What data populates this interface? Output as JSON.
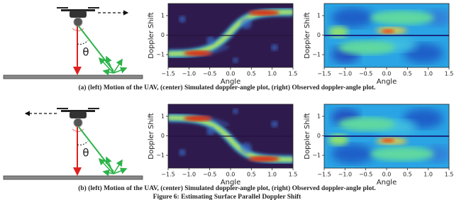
{
  "figure": {
    "rows": [
      {
        "theta": "θ",
        "plots": [
          {
            "ylabel": "Doppler Shift",
            "xlabel": "Angle",
            "xticks": [
              "−1.5",
              "−1.0",
              "−0.5",
              "0.0",
              "0.5",
              "1.0",
              "1.5"
            ],
            "yticks": [
              "1",
              "0",
              "−1"
            ]
          },
          {
            "ylabel": "Doppler Shift",
            "xlabel": "Angle",
            "xticks": [
              "−1.5",
              "−1.0",
              "−0.5",
              "0.0",
              "0.5",
              "1.0",
              "1.5"
            ],
            "yticks": [
              "1",
              "0",
              "−1"
            ]
          }
        ],
        "caption": "(a) (left) Motion of the UAV, (center) Simulated doppler-angle plot, (right) Observed doppler-angle plot."
      },
      {
        "theta": "θ",
        "plots": [
          {
            "ylabel": "Doppler Shift",
            "xlabel": "Angle",
            "xticks": [
              "−1.5",
              "−1.0",
              "−0.5",
              "0.0",
              "0.5",
              "1.0",
              "1.5"
            ],
            "yticks": [
              "1",
              "0",
              "−1"
            ]
          },
          {
            "ylabel": "Doppler Shift",
            "xlabel": "Angle",
            "xticks": [
              "−1.5",
              "−1.0",
              "−0.5",
              "0.0",
              "0.5",
              "1.0",
              "1.5"
            ],
            "yticks": [
              "1",
              "0",
              "−1"
            ]
          }
        ],
        "caption": "(b) (left) Motion of the UAV, (center) Simulated doppler-angle plot, (right) Observed doppler-angle plot."
      }
    ],
    "caption": "Figure 6: Estimating Surface Parallel Doppler Shift"
  }
}
